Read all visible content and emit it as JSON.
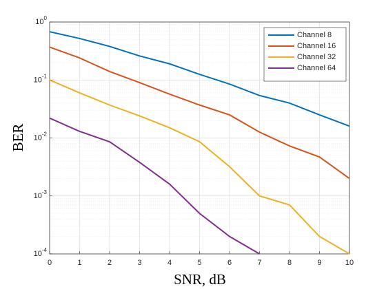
{
  "chart_data": {
    "type": "line",
    "x_label": "SNR, dB",
    "y_label": "BER",
    "y_scale": "log",
    "grid": true,
    "minor_grid": true,
    "legend_position": "northeast",
    "x": [
      0,
      1,
      2,
      3,
      4,
      5,
      6,
      7,
      8,
      9,
      10
    ],
    "xlim": [
      0,
      10
    ],
    "xticks": [
      0,
      1,
      2,
      3,
      4,
      5,
      6,
      7,
      8,
      9,
      10
    ],
    "ylim": [
      0.0001,
      1
    ],
    "yticks": [
      {
        "value": 0.0001,
        "label": "10^-4"
      },
      {
        "value": 0.001,
        "label": "10^-3"
      },
      {
        "value": 0.01,
        "label": "10^-2"
      },
      {
        "value": 0.1,
        "label": "10^-1"
      },
      {
        "value": 1,
        "label": "10^0"
      }
    ],
    "series": [
      {
        "name": "Channel 8",
        "color": "#0072BD",
        "values": [
          0.68,
          0.52,
          0.38,
          0.26,
          0.19,
          0.125,
          0.085,
          0.054,
          0.04,
          0.025,
          0.016
        ]
      },
      {
        "name": "Channel 16",
        "color": "#D95319",
        "values": [
          0.37,
          0.24,
          0.14,
          0.09,
          0.057,
          0.037,
          0.025,
          0.0126,
          0.0073,
          0.0047,
          0.002
        ]
      },
      {
        "name": "Channel 32",
        "color": "#EDB120",
        "values": [
          0.1,
          0.06,
          0.037,
          0.024,
          0.015,
          0.0086,
          0.0032,
          0.001,
          0.0007,
          0.0002,
          0.0001
        ]
      },
      {
        "name": "Channel 64",
        "color": "#7E2F8E",
        "values": [
          0.022,
          0.013,
          0.0086,
          0.0038,
          0.0016,
          0.0005,
          0.0002,
          0.0001,
          null,
          null,
          null
        ]
      }
    ]
  }
}
